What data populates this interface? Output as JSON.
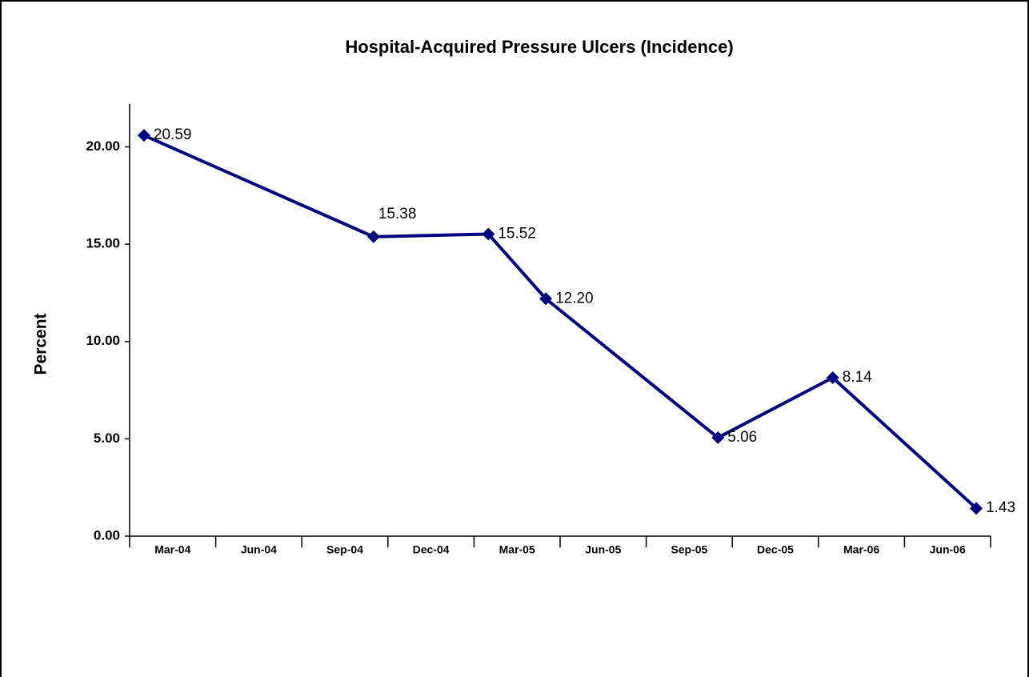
{
  "chart_data": {
    "type": "line",
    "title": "Hospital-Acquired Pressure Ulcers (Incidence)",
    "y_label": "Percent",
    "x": [
      0.5,
      8.5,
      12.5,
      14.5,
      20.5,
      24.5,
      29.5
    ],
    "series": [
      {
        "color": "#000080",
        "values": [
          20.59,
          15.38,
          15.52,
          12.2,
          5.06,
          8.14,
          1.43
        ],
        "value_labels": [
          "20.59",
          "15.38",
          "15.52",
          "12.20",
          "5.06",
          "8.14",
          "1.43"
        ]
      }
    ],
    "xlim": [
      0,
      30
    ],
    "xticks": [
      {
        "value": 0,
        "label": "Mar-04"
      },
      {
        "value": 3,
        "label": "Jun-04"
      },
      {
        "value": 6,
        "label": "Sep-04"
      },
      {
        "value": 9,
        "label": "Dec-04"
      },
      {
        "value": 12,
        "label": "Mar-05"
      },
      {
        "value": 15,
        "label": "Jun-05"
      },
      {
        "value": 18,
        "label": "Sep-05"
      },
      {
        "value": 21,
        "label": "Dec-05"
      },
      {
        "value": 24,
        "label": "Mar-06"
      },
      {
        "value": 27,
        "label": "Jun-06"
      }
    ],
    "ylim": [
      0,
      22.2
    ],
    "yticks": [
      {
        "value": 0,
        "label": "0.00"
      },
      {
        "value": 5,
        "label": "5.00"
      },
      {
        "value": 10,
        "label": "10.00"
      },
      {
        "value": 15,
        "label": "15.00"
      },
      {
        "value": 20,
        "label": "20.00"
      }
    ],
    "grid": false
  }
}
